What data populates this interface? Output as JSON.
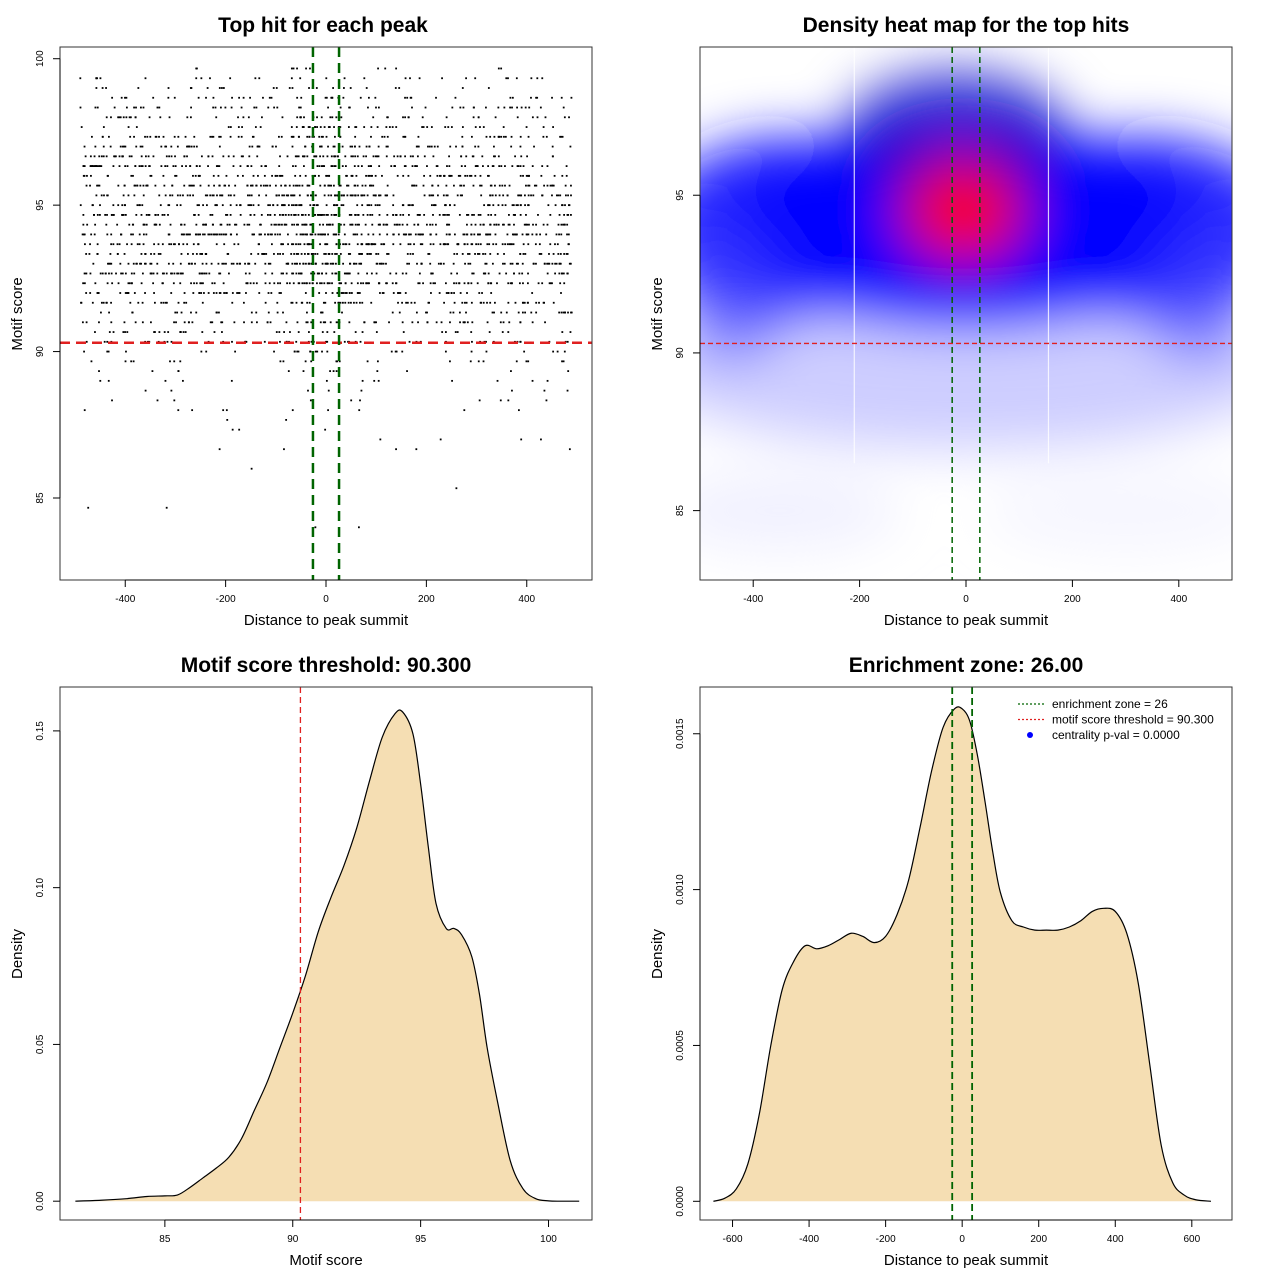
{
  "chart_data": [
    {
      "type": "scatter",
      "title": "Top hit for each peak",
      "xlabel": "Distance to peak summit",
      "ylabel": "Motif score",
      "xlim": [
        -530,
        530
      ],
      "ylim": [
        82.2,
        100.4
      ],
      "xticks": [
        -400,
        -200,
        0,
        200,
        400
      ],
      "yticks": [
        85,
        90,
        95,
        100
      ],
      "points": {
        "n": 2600,
        "x_range": [
          -490,
          490
        ],
        "y_mode": 94.2,
        "y_sd": 2.6,
        "y_min": 83.9,
        "y_max": 99.7,
        "central_enrichment": true
      },
      "hline": {
        "y": 90.3,
        "color": "#e02020"
      },
      "vlines": [
        {
          "x": -26,
          "color": "#006400"
        },
        {
          "x": 26,
          "color": "#006400"
        }
      ]
    },
    {
      "type": "heatmap",
      "title": "Density heat map for the top hits",
      "xlabel": "Distance to peak summit",
      "ylabel": "Motif score",
      "xlim": [
        -500,
        500
      ],
      "ylim": [
        82.8,
        99.7
      ],
      "xticks": [
        -400,
        -200,
        0,
        200,
        400
      ],
      "yticks": [
        85,
        90,
        95
      ],
      "color_scale": [
        "#ffffff",
        "#0000ff",
        "#ff0000"
      ],
      "peak": {
        "x": -5,
        "y": 94.5
      },
      "hline": {
        "y": 90.3,
        "color": "#e02020"
      },
      "vlines": [
        {
          "x": -26,
          "color": "#006400"
        },
        {
          "x": 26,
          "color": "#006400"
        }
      ],
      "white_lines": [
        -210,
        155
      ]
    },
    {
      "type": "area",
      "title": "Motif score threshold: 90.300",
      "xlabel": "Motif score",
      "ylabel": "Density",
      "xlim": [
        80.9,
        101.7
      ],
      "ylim": [
        -0.006,
        0.164
      ],
      "xticks": [
        85,
        90,
        95,
        100
      ],
      "yticks": [
        0.0,
        0.05,
        0.1,
        0.15
      ],
      "ytick_labels": [
        "0.00",
        "0.05",
        "0.10",
        "0.15"
      ],
      "fill": "#f5deb3",
      "x": [
        81.5,
        82.5,
        83.5,
        84.3,
        85.0,
        85.5,
        86.0,
        86.5,
        87.0,
        87.5,
        88.0,
        88.5,
        89.0,
        89.5,
        90.0,
        90.5,
        91.0,
        91.5,
        92.0,
        92.5,
        93.0,
        93.5,
        94.0,
        94.3,
        94.7,
        95.0,
        95.3,
        95.6,
        96.0,
        96.3,
        96.6,
        97.0,
        97.3,
        97.6,
        98.0,
        98.5,
        99.0,
        99.5,
        100.0,
        100.5,
        101.2
      ],
      "y": [
        0.0,
        0.0003,
        0.0008,
        0.0015,
        0.0017,
        0.002,
        0.0045,
        0.0075,
        0.0105,
        0.014,
        0.02,
        0.029,
        0.038,
        0.049,
        0.06,
        0.072,
        0.086,
        0.097,
        0.107,
        0.119,
        0.134,
        0.148,
        0.1555,
        0.156,
        0.149,
        0.133,
        0.113,
        0.095,
        0.087,
        0.087,
        0.085,
        0.078,
        0.066,
        0.049,
        0.032,
        0.013,
        0.004,
        0.0008,
        0.0001,
        0.0,
        0.0
      ],
      "vline": {
        "x": 90.3,
        "color": "#e02020"
      }
    },
    {
      "type": "area",
      "title": "Enrichment zone: 26.00",
      "xlabel": "Distance to peak summit",
      "ylabel": "Density",
      "xlim": [
        -685,
        705
      ],
      "ylim": [
        -6e-05,
        0.00165
      ],
      "xticks": [
        -600,
        -400,
        -200,
        0,
        200,
        400,
        600
      ],
      "yticks": [
        0.0,
        0.0005,
        0.001,
        0.0015
      ],
      "ytick_labels": [
        "0.0000",
        "0.0005",
        "0.0010",
        "0.0015"
      ],
      "fill": "#f5deb3",
      "x": [
        -650,
        -620,
        -590,
        -560,
        -530,
        -500,
        -470,
        -440,
        -410,
        -380,
        -350,
        -320,
        -290,
        -260,
        -230,
        -200,
        -170,
        -140,
        -110,
        -80,
        -50,
        -20,
        0,
        20,
        40,
        60,
        80,
        100,
        130,
        160,
        190,
        220,
        250,
        280,
        310,
        340,
        370,
        400,
        430,
        460,
        490,
        520,
        550,
        580,
        610,
        650
      ],
      "y": [
        0.0,
        1e-05,
        4e-05,
        0.00012,
        0.00028,
        0.0005,
        0.00068,
        0.00077,
        0.00082,
        0.00081,
        0.00082,
        0.00084,
        0.00086,
        0.00085,
        0.00083,
        0.00085,
        0.00092,
        0.00103,
        0.0012,
        0.00138,
        0.00152,
        0.00158,
        0.00158,
        0.00154,
        0.00143,
        0.00128,
        0.00112,
        0.00099,
        0.0009,
        0.00088,
        0.00087,
        0.00087,
        0.00087,
        0.00088,
        0.0009,
        0.00093,
        0.00094,
        0.00093,
        0.00086,
        0.0007,
        0.00044,
        0.00018,
        6e-05,
        2e-05,
        5e-06,
        0.0
      ],
      "vlines": [
        {
          "x": -26,
          "color": "#006400"
        },
        {
          "x": 26,
          "color": "#006400"
        }
      ],
      "legend": {
        "position": "top-right",
        "entries": [
          {
            "label": "enrichment zone = 26",
            "color": "#006400",
            "style": "dotted-line"
          },
          {
            "label": "motif score threshold = 90.300",
            "color": "#e02020",
            "style": "dotted-line"
          },
          {
            "label": "centrality p-val = 0.0000",
            "color": "#0000ff",
            "style": "point"
          }
        ]
      }
    }
  ]
}
